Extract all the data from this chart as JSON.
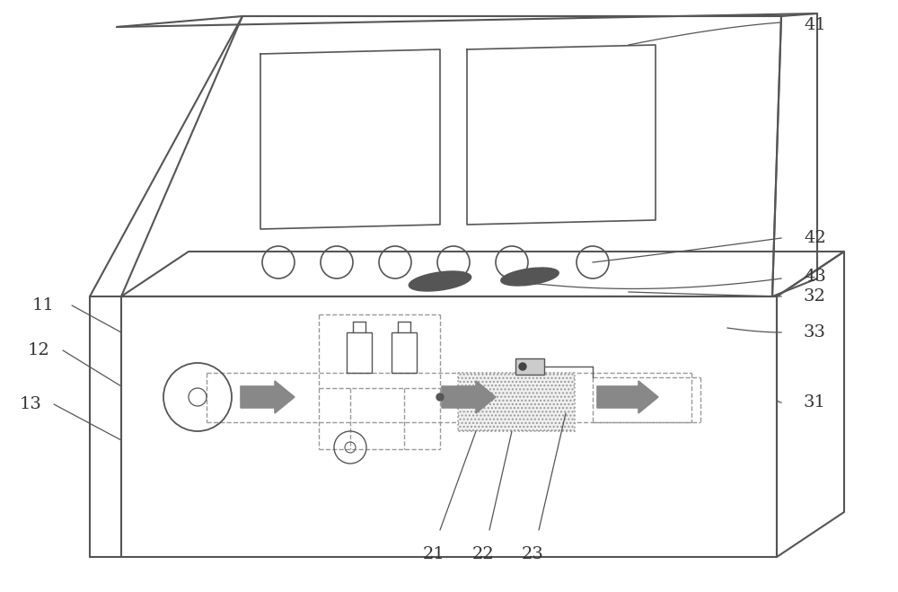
{
  "bg_color": "#ffffff",
  "line_color": "#555555",
  "dashed_color": "#999999",
  "arrow_color": "#888888",
  "label_color": "#333333",
  "fig_width": 10.0,
  "fig_height": 6.59,
  "line_width": 1.3
}
